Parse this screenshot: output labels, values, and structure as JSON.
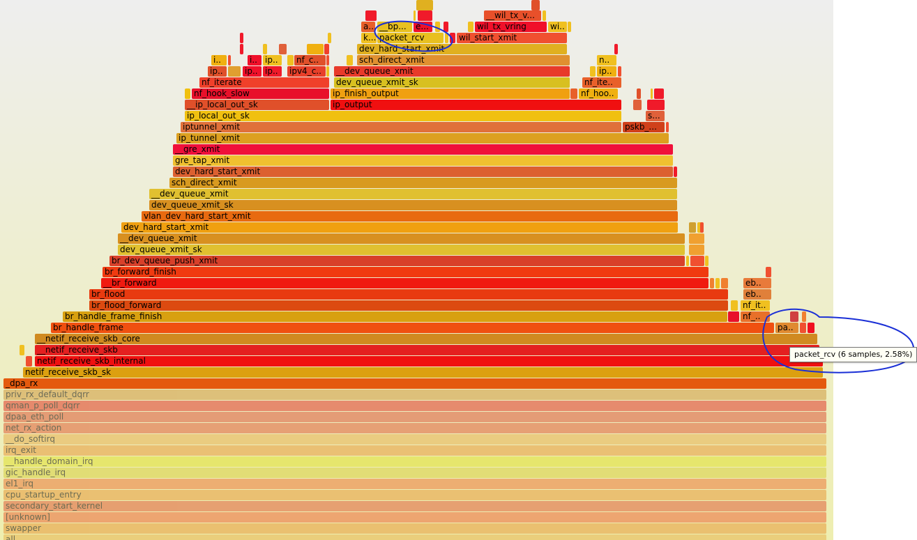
{
  "tooltip": {
    "text": "packet_rcv (6 samples, 2.58%)"
  },
  "colors": {
    "annotation_circle": "#1a2fd6",
    "tooltip_bg": "#fffff4"
  },
  "frames": [
    {
      "id": "f-all",
      "label": "all",
      "dim": true,
      "color": "#e8b450"
    },
    {
      "id": "f-swapper",
      "label": "swapper",
      "dim": true,
      "color": "#e89a3a"
    },
    {
      "id": "f-unknown",
      "label": "[unknown]",
      "dim": true,
      "color": "#ec6a3a"
    },
    {
      "id": "f-secondary",
      "label": "secondary_start_kernel",
      "dim": true,
      "color": "#e0603a"
    },
    {
      "id": "f-cpu",
      "label": "cpu_startup_entry",
      "dim": true,
      "color": "#e89a3a"
    },
    {
      "id": "f-el1irq",
      "label": "el1_irq",
      "dim": true,
      "color": "#ec7a3a"
    },
    {
      "id": "f-gic",
      "label": "gic_handle_irq",
      "dim": true,
      "color": "#d8d040"
    },
    {
      "id": "f-hdi",
      "label": "__handle_domain_irq",
      "dim": true,
      "color": "#e0e030"
    },
    {
      "id": "f-irqexit",
      "label": "irq_exit",
      "dim": true,
      "color": "#e89a3a"
    },
    {
      "id": "f-dosoftirq",
      "label": "__do_softirq",
      "dim": true,
      "color": "#e8b050"
    },
    {
      "id": "f-netrx",
      "label": "net_rx_action",
      "dim": true,
      "color": "#e0603a"
    },
    {
      "id": "f-dpaapoll",
      "label": "dpaa_eth_poll",
      "dim": true,
      "color": "#dc5a3a"
    },
    {
      "id": "f-qman",
      "label": "qman_p_poll_dqrr",
      "dim": true,
      "color": "#e03a2a"
    },
    {
      "id": "f-privrx",
      "label": "priv_rx_default_dqrr",
      "dim": true,
      "color": "#d09a40"
    },
    {
      "id": "f-dparx",
      "label": "_dpa_rx",
      "color": "#e45a0e"
    },
    {
      "id": "f-nrsk",
      "label": "netif_receive_skb_sk",
      "color": "#dca010"
    },
    {
      "id": "f-nrsi",
      "label": "netif_receive_skb_internal",
      "color": "#f01010"
    },
    {
      "id": "f-nrskb",
      "label": "__netif_receive_skb",
      "color": "#e42020"
    },
    {
      "id": "f-nrsc",
      "label": "__netif_receive_skb_core",
      "color": "#d08a20"
    },
    {
      "id": "f-brhf",
      "label": "br_handle_frame",
      "color": "#f05010"
    },
    {
      "id": "f-brhff",
      "label": "br_handle_frame_finish",
      "color": "#d8a010"
    },
    {
      "id": "f-brff",
      "label": "br_flood_forward",
      "color": "#dc4a10"
    },
    {
      "id": "f-brflood",
      "label": "br_flood",
      "color": "#e83a10"
    },
    {
      "id": "f-__brfwd",
      "label": "__br_forward",
      "color": "#f01a10"
    },
    {
      "id": "f-brfwdfin",
      "label": "br_forward_finish",
      "color": "#f03a10"
    },
    {
      "id": "f-brdqpx",
      "label": "br_dev_queue_push_xmit",
      "color": "#d8402a"
    },
    {
      "id": "f-dqxsk1",
      "label": "dev_queue_xmit_sk",
      "color": "#e0c030"
    },
    {
      "id": "f-__dqx1",
      "label": "__dev_queue_xmit",
      "color": "#d89020"
    },
    {
      "id": "f-dhsx1",
      "label": "dev_hard_start_xmit",
      "color": "#f0a010"
    },
    {
      "id": "f-vlan",
      "label": "vlan_dev_hard_start_xmit",
      "color": "#e86a10"
    },
    {
      "id": "f-dqxsk2",
      "label": "dev_queue_xmit_sk",
      "color": "#d89020"
    },
    {
      "id": "f-__dqx2",
      "label": "__dev_queue_xmit",
      "color": "#e0c030"
    },
    {
      "id": "f-sdx1",
      "label": "sch_direct_xmit",
      "color": "#d89a20"
    },
    {
      "id": "f-dhsx2",
      "label": "dev_hard_start_xmit",
      "color": "#dc6030"
    },
    {
      "id": "f-gretap",
      "label": "gre_tap_xmit",
      "color": "#f0c030"
    },
    {
      "id": "f-__grex",
      "label": "__gre_xmit",
      "color": "#f0103a"
    },
    {
      "id": "f-iptx",
      "label": "ip_tunnel_xmit",
      "color": "#dca020"
    },
    {
      "id": "f-iptunnelx",
      "label": "iptunnel_xmit",
      "color": "#e0703a"
    },
    {
      "id": "f-pskb",
      "label": "pskb_...",
      "color": "#d0401a"
    },
    {
      "id": "f-iplosk",
      "label": "ip_local_out_sk",
      "color": "#f0c010"
    },
    {
      "id": "f-s",
      "label": "s...",
      "color": "#e0603a"
    },
    {
      "id": "f-__iplosk",
      "label": "__ip_local_out_sk",
      "color": "#e0502a"
    },
    {
      "id": "f-ipoutput",
      "label": "ip_output",
      "color": "#f01010"
    },
    {
      "id": "f-nfhs",
      "label": "nf_hook_slow",
      "color": "#e8102a"
    },
    {
      "id": "f-ipfo",
      "label": "ip_finish_output",
      "color": "#f0a010"
    },
    {
      "id": "f-nfhoo",
      "label": "nf_hoo..",
      "color": "#f0b010"
    },
    {
      "id": "f-nfit1",
      "label": "nf_iterate",
      "color": "#f0402a"
    },
    {
      "id": "f-dqxsk3",
      "label": "dev_queue_xmit_sk",
      "color": "#d8c020"
    },
    {
      "id": "f-nfite",
      "label": "nf_ite..",
      "color": "#e8602a"
    },
    {
      "id": "f-ip1",
      "label": "ip..",
      "color": "#e0502a"
    },
    {
      "id": "f-ip2",
      "label": "ip..",
      "color": "#f0102a"
    },
    {
      "id": "f-ip3",
      "label": "ip..",
      "color": "#f01a2a"
    },
    {
      "id": "f-ipv4c",
      "label": "ipv4_c..",
      "color": "#e8402a"
    },
    {
      "id": "f-__dqx3",
      "label": "__dev_queue_xmit",
      "color": "#e83a2a"
    },
    {
      "id": "f-ip4",
      "label": "ip..",
      "color": "#f0b010"
    },
    {
      "id": "f-i1",
      "label": "i..",
      "color": "#f0b010"
    },
    {
      "id": "f-i2",
      "label": "i..",
      "color": "#f0102a"
    },
    {
      "id": "f-ip5",
      "label": "ip..",
      "color": "#f0c020"
    },
    {
      "id": "f-nfc",
      "label": "nf_c..",
      "color": "#e0502a"
    },
    {
      "id": "f-sdx2",
      "label": "sch_direct_xmit",
      "color": "#e09030"
    },
    {
      "id": "f-n",
      "label": "n..",
      "color": "#f0c020"
    },
    {
      "id": "f-dhsx3",
      "label": "dev_hard_start_xmit",
      "color": "#e0b020"
    },
    {
      "id": "f-k",
      "label": "k...",
      "color": "#f0c020"
    },
    {
      "id": "f-packetrcv",
      "label": "packet_rcv",
      "color": "#e8c020"
    },
    {
      "id": "f-wilsx",
      "label": "wil_start_xmit",
      "color": "#f05030"
    },
    {
      "id": "f-a",
      "label": "a...",
      "color": "#e8602a"
    },
    {
      "id": "f-bp",
      "label": "__bp...",
      "color": "#e8c020"
    },
    {
      "id": "f-e",
      "label": "e...",
      "color": "#f0102a"
    },
    {
      "id": "f-wiltxvr",
      "label": "wil_tx_vring",
      "color": "#f0102a"
    },
    {
      "id": "f-wi",
      "label": "wi..",
      "color": "#f0c020"
    },
    {
      "id": "f-__wiltxv",
      "label": "__wil_tx_v...",
      "color": "#e8502a"
    },
    {
      "id": "f-nfit2",
      "label": "nf_it..",
      "color": "#f0c020"
    },
    {
      "id": "f-nf",
      "label": "nf_..",
      "color": "#e8702a"
    },
    {
      "id": "f-pa",
      "label": "pa..",
      "color": "#e08a30"
    },
    {
      "id": "f-eb1",
      "label": "eb..",
      "color": "#e87a3a"
    },
    {
      "id": "f-eb2",
      "label": "eb..",
      "color": "#e0803a"
    }
  ]
}
